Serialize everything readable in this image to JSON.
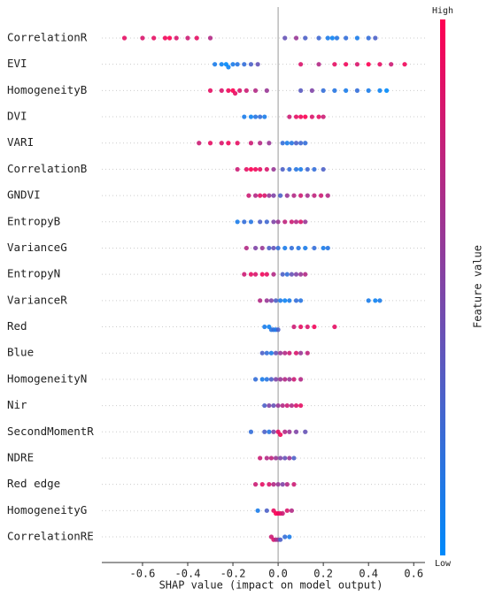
{
  "chart_data": {
    "type": "beeswarm",
    "xlabel": "SHAP value (impact on model output)",
    "xlim": [
      -0.78,
      0.65
    ],
    "xticks": [
      -0.6,
      -0.4,
      -0.2,
      {
        "value": 0,
        "label": "0.0"
      },
      0.2,
      0.4,
      0.6
    ],
    "colorbar": {
      "label": "Feature value",
      "high": "High",
      "low": "Low",
      "colors": [
        "#008afb",
        "#ff0052"
      ]
    },
    "categories": [
      "CorrelationR",
      "EVI",
      "HomogeneityB",
      "DVI",
      "VARI",
      "CorrelationB",
      "GNDVI",
      "EntropyB",
      "VarianceG",
      "EntropyN",
      "VarianceR",
      "Red",
      "Blue",
      "HomogeneityN",
      "Nir",
      "SecondMomentR",
      "NDRE",
      "Red edge",
      "HomogeneityG",
      "CorrelationRE"
    ],
    "shap_values": [
      [
        -0.68,
        -0.6,
        -0.55,
        -0.5,
        -0.48,
        -0.45,
        -0.4,
        -0.36,
        -0.3,
        0.03,
        0.08,
        0.12,
        0.18,
        0.22,
        0.24,
        0.26,
        0.3,
        0.35,
        0.4,
        0.43
      ],
      [
        -0.28,
        -0.25,
        -0.23,
        -0.22,
        -0.2,
        -0.18,
        -0.15,
        -0.12,
        -0.09,
        0.1,
        0.18,
        0.25,
        0.3,
        0.35,
        0.4,
        0.45,
        0.5,
        0.56
      ],
      [
        -0.3,
        -0.25,
        -0.22,
        -0.2,
        -0.19,
        -0.17,
        -0.14,
        -0.1,
        -0.05,
        0.1,
        0.15,
        0.2,
        0.25,
        0.3,
        0.35,
        0.4,
        0.45,
        0.48
      ],
      [
        -0.15,
        -0.12,
        -0.1,
        -0.08,
        -0.06,
        0.05,
        0.08,
        0.1,
        0.12,
        0.15,
        0.18,
        0.2
      ],
      [
        -0.35,
        -0.3,
        -0.25,
        -0.22,
        -0.18,
        -0.12,
        -0.08,
        -0.04,
        0.02,
        0.04,
        0.06,
        0.08,
        0.1,
        0.12
      ],
      [
        -0.18,
        -0.14,
        -0.12,
        -0.1,
        -0.08,
        -0.05,
        -0.02,
        0.02,
        0.05,
        0.08,
        0.1,
        0.13,
        0.16,
        0.2
      ],
      [
        -0.13,
        -0.1,
        -0.08,
        -0.06,
        -0.04,
        -0.02,
        0.01,
        0.04,
        0.07,
        0.1,
        0.13,
        0.16,
        0.19,
        0.22
      ],
      [
        -0.18,
        -0.15,
        -0.12,
        -0.08,
        -0.05,
        -0.02,
        0,
        0.03,
        0.06,
        0.08,
        0.1,
        0.12
      ],
      [
        -0.14,
        -0.1,
        -0.07,
        -0.04,
        -0.02,
        0,
        0.03,
        0.06,
        0.09,
        0.12,
        0.16,
        0.2,
        0.22
      ],
      [
        -0.15,
        -0.12,
        -0.1,
        -0.07,
        -0.05,
        -0.02,
        0.02,
        0.04,
        0.06,
        0.08,
        0.1,
        0.12
      ],
      [
        -0.08,
        -0.05,
        -0.03,
        -0.01,
        0.01,
        0.03,
        0.05,
        0.08,
        0.1,
        0.4,
        0.43,
        0.45
      ],
      [
        -0.06,
        -0.04,
        -0.03,
        -0.02,
        -0.01,
        0,
        0.07,
        0.1,
        0.13,
        0.16,
        0.25
      ],
      [
        -0.07,
        -0.05,
        -0.03,
        -0.01,
        0.01,
        0.03,
        0.05,
        0.08,
        0.1,
        0.13
      ],
      [
        -0.1,
        -0.07,
        -0.05,
        -0.03,
        -0.01,
        0.01,
        0.03,
        0.05,
        0.07,
        0.1
      ],
      [
        -0.06,
        -0.04,
        -0.02,
        0,
        0.02,
        0.04,
        0.06,
        0.08,
        0.1
      ],
      [
        -0.12,
        -0.06,
        -0.04,
        -0.02,
        0,
        0.01,
        0.03,
        0.05,
        0.08,
        0.12
      ],
      [
        -0.08,
        -0.05,
        -0.03,
        -0.01,
        0.01,
        0.03,
        0.05,
        0.07
      ],
      [
        -0.1,
        -0.07,
        -0.04,
        -0.02,
        0,
        0.02,
        0.04,
        0.07
      ],
      [
        -0.09,
        -0.05,
        -0.02,
        -0.01,
        0,
        0.01,
        0.02,
        0.04,
        0.06
      ],
      [
        -0.03,
        -0.02,
        -0.01,
        0,
        0.01,
        0.03,
        0.05
      ]
    ],
    "feature_values": [
      [
        0.9,
        0.85,
        0.9,
        0.95,
        1,
        0.85,
        0.8,
        0.9,
        0.7,
        0.4,
        0.6,
        0.3,
        0.25,
        0.1,
        0.05,
        0.15,
        0.2,
        0.1,
        0.2,
        0.3
      ],
      [
        0.1,
        0.05,
        0,
        0.05,
        0.1,
        0.15,
        0.2,
        0.3,
        0.4,
        0.85,
        0.7,
        0.9,
        0.95,
        0.85,
        1,
        0.9,
        0.8,
        0.95
      ],
      [
        0.9,
        0.85,
        0.95,
        1,
        0.9,
        0.85,
        0.8,
        0.7,
        0.6,
        0.35,
        0.5,
        0.2,
        0.15,
        0.1,
        0.2,
        0.1,
        0.05,
        0
      ],
      [
        0.1,
        0.05,
        0.15,
        0.2,
        0.1,
        0.8,
        0.9,
        0.95,
        1,
        0.85,
        0.9,
        0.8
      ],
      [
        0.8,
        0.9,
        0.85,
        0.95,
        0.9,
        0.8,
        0.7,
        0.6,
        0.2,
        0.1,
        0.15,
        0.3,
        0.25,
        0.2
      ],
      [
        0.8,
        0.9,
        1,
        0.95,
        0.9,
        0.85,
        0.6,
        0.3,
        0.2,
        0.15,
        0.1,
        0.25,
        0.2,
        0.3
      ],
      [
        0.8,
        0.7,
        0.9,
        0.85,
        0.6,
        0.5,
        0.3,
        0.6,
        0.7,
        0.8,
        0.65,
        0.75,
        0.8,
        0.7
      ],
      [
        0.1,
        0.2,
        0.15,
        0.3,
        0.25,
        0.5,
        0.6,
        0.75,
        0.8,
        0.7,
        0.85,
        0.6
      ],
      [
        0.7,
        0.5,
        0.6,
        0.3,
        0.4,
        0.2,
        0.1,
        0.2,
        0.15,
        0.1,
        0.2,
        0.1,
        0.15
      ],
      [
        0.8,
        0.9,
        0.85,
        0.95,
        0.9,
        0.7,
        0.3,
        0.2,
        0.4,
        0.5,
        0.6,
        0.7
      ],
      [
        0.7,
        0.6,
        0.5,
        0.3,
        0.1,
        0.05,
        0.1,
        0.2,
        0.15,
        0.1,
        0.05,
        0.1
      ],
      [
        0.1,
        0.05,
        0.15,
        0.2,
        0.1,
        0.3,
        0.8,
        0.9,
        0.85,
        0.95,
        0.9
      ],
      [
        0.3,
        0.2,
        0.1,
        0.4,
        0.6,
        0.7,
        0.8,
        0.85,
        0.6,
        0.75
      ],
      [
        0.2,
        0.1,
        0.15,
        0.3,
        0.5,
        0.6,
        0.7,
        0.6,
        0.8,
        0.7
      ],
      [
        0.3,
        0.5,
        0.4,
        0.6,
        0.7,
        0.8,
        0.7,
        0.85,
        0.9
      ],
      [
        0.2,
        0.3,
        0.15,
        0.5,
        0.9,
        0.95,
        0.7,
        0.6,
        0.5,
        0.4
      ],
      [
        0.8,
        0.7,
        0.75,
        0.6,
        0.5,
        0.4,
        0.6,
        0.3
      ],
      [
        0.8,
        0.9,
        0.85,
        0.7,
        0.6,
        0.5,
        0.7,
        0.8
      ],
      [
        0.1,
        0.3,
        0.9,
        1,
        0.95,
        0.9,
        0.8,
        0.85,
        0.7
      ],
      [
        0.8,
        0.85,
        0.7,
        0.6,
        0.3,
        0.2,
        0.1
      ]
    ]
  }
}
